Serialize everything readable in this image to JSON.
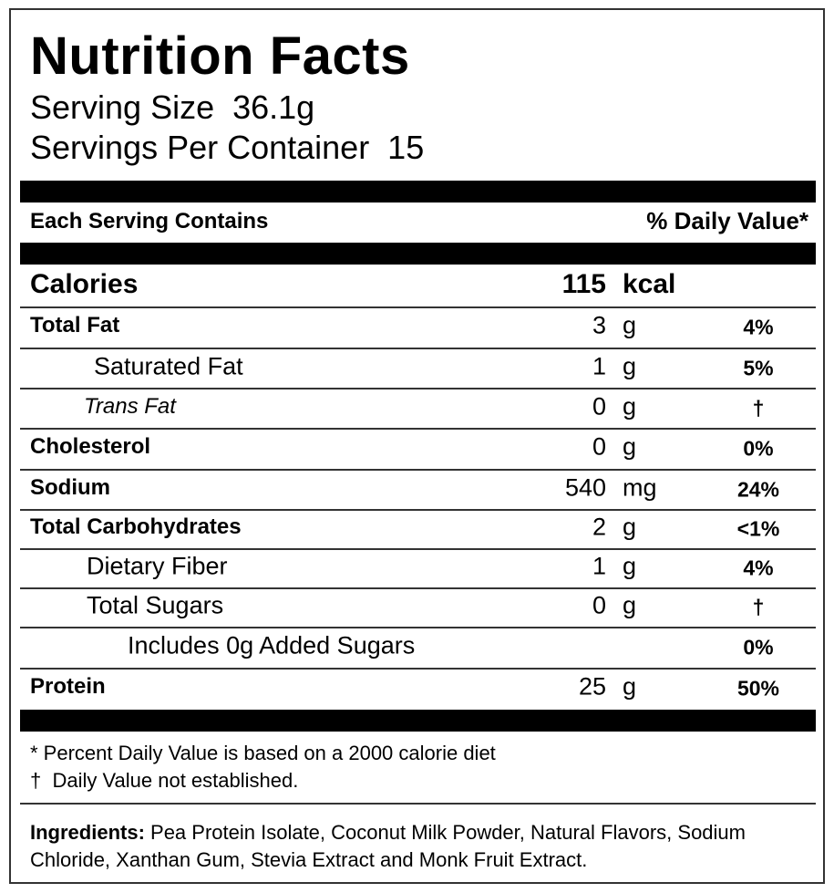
{
  "header": {
    "title": "Nutrition Facts",
    "serving_size": "Serving Size  36.1g",
    "servings_per_container": "Servings Per Container  15"
  },
  "table": {
    "header_left": "Each Serving Contains",
    "header_right": "% Daily Value*",
    "rows": [
      {
        "name": "Calories",
        "amount": 115,
        "unit": "kcal"
      },
      {
        "name": "Total Fat",
        "amount": 3,
        "unit": "g",
        "dv": "4%"
      },
      {
        "name": "Saturated Fat",
        "amount": 1,
        "unit": "g",
        "dv": "5%"
      },
      {
        "name": "Trans Fat",
        "amount": 0,
        "unit": "g",
        "dv": "†"
      },
      {
        "name": "Cholesterol",
        "amount": 0,
        "unit": "g",
        "dv": "0%"
      },
      {
        "name": "Sodium",
        "amount": 540,
        "unit": "mg",
        "dv": "24%"
      },
      {
        "name": "Total Carbohydrates",
        "amount": 2,
        "unit": "g",
        "dv": "<1%"
      },
      {
        "name": "Dietary Fiber",
        "amount": 1,
        "unit": "g",
        "dv": "4%"
      },
      {
        "name": "Total Sugars",
        "amount": 0,
        "unit": "g",
        "dv": "†"
      },
      {
        "name": "Includes 0g Added Sugars",
        "dv": "0%"
      },
      {
        "name": "Protein",
        "amount": 25,
        "unit": "g",
        "dv": "50%"
      }
    ]
  },
  "footnotes": [
    "* Percent Daily Value is based on a 2000 calorie diet",
    "†  Daily Value not established."
  ],
  "ingredients": {
    "label": "Ingredients:",
    "text": " Pea Protein Isolate, Coconut Milk Powder, Natural Flavors, Sodium Chloride, Xanthan Gum, Stevia Extract and Monk Fruit Extract."
  }
}
